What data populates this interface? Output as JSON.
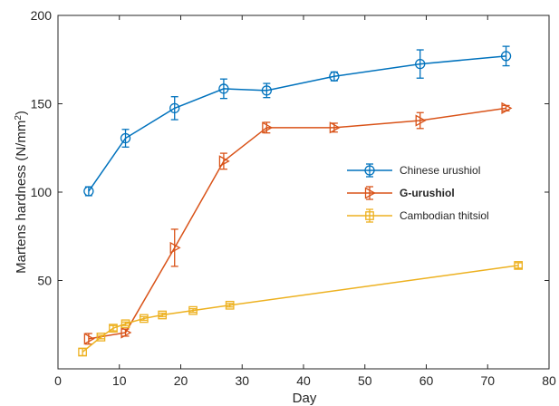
{
  "chart_data": {
    "type": "line",
    "title": "",
    "xlabel": "Day",
    "ylabel": "Martens hardness (N/mm",
    "ylabel_sup": "2",
    "ylabel_end": ")",
    "xlim": [
      0,
      80
    ],
    "ylim": [
      0,
      200
    ],
    "xticks": [
      0,
      10,
      20,
      30,
      40,
      50,
      60,
      70,
      80
    ],
    "yticks": [
      50,
      100,
      150,
      200
    ],
    "grid": false,
    "legend_position": "right-middle",
    "series": [
      {
        "name": "Chinese urushiol",
        "bold": false,
        "color": "#0072BD",
        "marker": "circle",
        "x": [
          5,
          11,
          19,
          27,
          34,
          45,
          59,
          73
        ],
        "y": [
          100.5,
          130.5,
          147.5,
          158.5,
          157.5,
          165.5,
          172.5,
          177
        ],
        "err": [
          2.5,
          5,
          6.5,
          5.5,
          4,
          2.5,
          8,
          5.5
        ]
      },
      {
        "name": "G-urushiol",
        "bold": true,
        "color": "#D95319",
        "marker": "triangle-right",
        "x": [
          5,
          11,
          19,
          27,
          34,
          45,
          59,
          73
        ],
        "y": [
          17,
          20.5,
          68.5,
          117.5,
          136.5,
          136.5,
          140.5,
          147.5
        ],
        "err": [
          3,
          2,
          10.5,
          4.5,
          3,
          2.5,
          4.5,
          1.5
        ]
      },
      {
        "name": "Cambodian thitsiol",
        "bold": false,
        "color": "#EDB120",
        "marker": "square",
        "x": [
          4,
          7,
          9,
          11,
          14,
          17,
          22,
          28,
          75
        ],
        "y": [
          9.5,
          18,
          23,
          25.5,
          28.5,
          30.5,
          33,
          36,
          58.5
        ],
        "err": [
          2,
          1,
          1.5,
          1,
          1,
          1,
          1,
          1,
          1.5
        ]
      }
    ]
  }
}
